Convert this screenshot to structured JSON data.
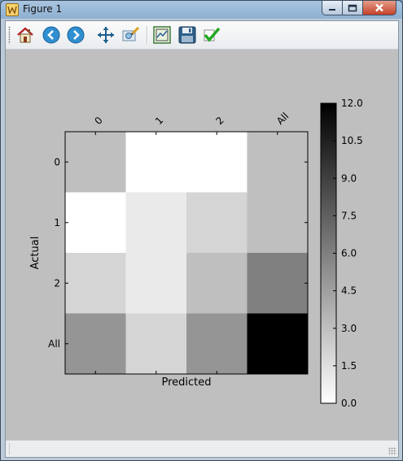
{
  "window": {
    "title": "Figure 1"
  },
  "toolbar": {
    "buttons": [
      {
        "name": "home",
        "icon": "home-icon"
      },
      {
        "name": "back",
        "icon": "back-arrow-icon"
      },
      {
        "name": "forward",
        "icon": "forward-arrow-icon"
      },
      {
        "name": "pan",
        "icon": "pan-arrows-icon"
      },
      {
        "name": "zoom",
        "icon": "zoom-rect-icon"
      },
      {
        "name": "subplots",
        "icon": "subplots-config-icon"
      },
      {
        "name": "save",
        "icon": "floppy-disk-icon"
      },
      {
        "name": "edit",
        "icon": "checkmark-icon"
      }
    ]
  },
  "chart_data": {
    "type": "heatmap",
    "colormap": "gray_r",
    "x_tick_labels": [
      "0",
      "1",
      "2",
      "All"
    ],
    "y_tick_labels": [
      "0",
      "1",
      "2",
      "All"
    ],
    "xlabel": "Predicted",
    "ylabel": "Actual",
    "x_ticks_position": "top",
    "values": [
      [
        3,
        0,
        0,
        3
      ],
      [
        0,
        1,
        2,
        3
      ],
      [
        2,
        1,
        3,
        6
      ],
      [
        5,
        2,
        5,
        12
      ]
    ],
    "colorbar": {
      "min": 0,
      "max": 12,
      "tick_labels": [
        "0.0",
        "1.5",
        "3.0",
        "4.5",
        "6.0",
        "7.5",
        "9.0",
        "10.5",
        "12.0"
      ],
      "tick_values": [
        0,
        1.5,
        3,
        4.5,
        6,
        7.5,
        9,
        10.5,
        12
      ]
    },
    "background": "#bfbfbf"
  }
}
